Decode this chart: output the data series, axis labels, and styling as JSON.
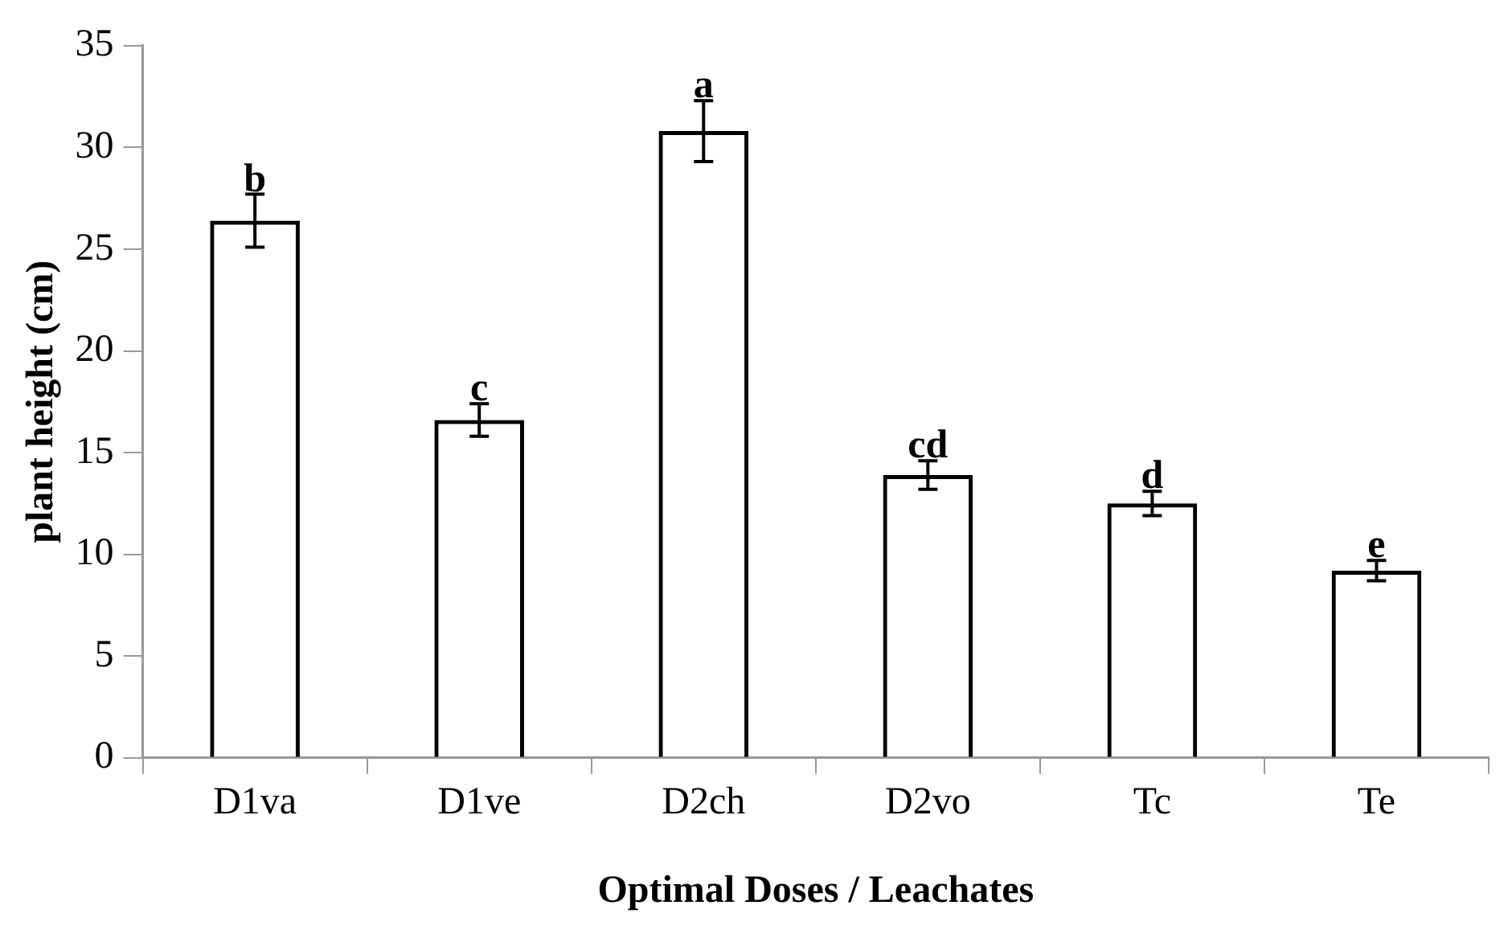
{
  "chart_data": {
    "type": "bar",
    "xlabel": "Optimal Doses / Leachates",
    "ylabel": "plant height (cm)",
    "categories": [
      "D1va",
      "D1ve",
      "D2ch",
      "D2vo",
      "Tc",
      "Te"
    ],
    "values": [
      26.4,
      16.6,
      30.8,
      13.9,
      12.5,
      9.2
    ],
    "errors": [
      1.3,
      0.8,
      1.5,
      0.7,
      0.6,
      0.5
    ],
    "color": "#000000",
    "ylim": [
      0,
      35
    ],
    "yticks": [
      0,
      5,
      10,
      15,
      20,
      25,
      30,
      35
    ],
    "grid": false,
    "legend": false,
    "annotations": [
      {
        "text": "b",
        "x": "D1va",
        "y": 27.7
      },
      {
        "text": "c",
        "x": "D1ve",
        "y": 17.4
      },
      {
        "text": "a",
        "x": "D2ch",
        "y": 32.3
      },
      {
        "text": "cd",
        "x": "D2vo",
        "y": 14.6
      },
      {
        "text": "d",
        "x": "Tc",
        "y": 13.1
      },
      {
        "text": "e",
        "x": "Te",
        "y": 9.7
      }
    ]
  }
}
